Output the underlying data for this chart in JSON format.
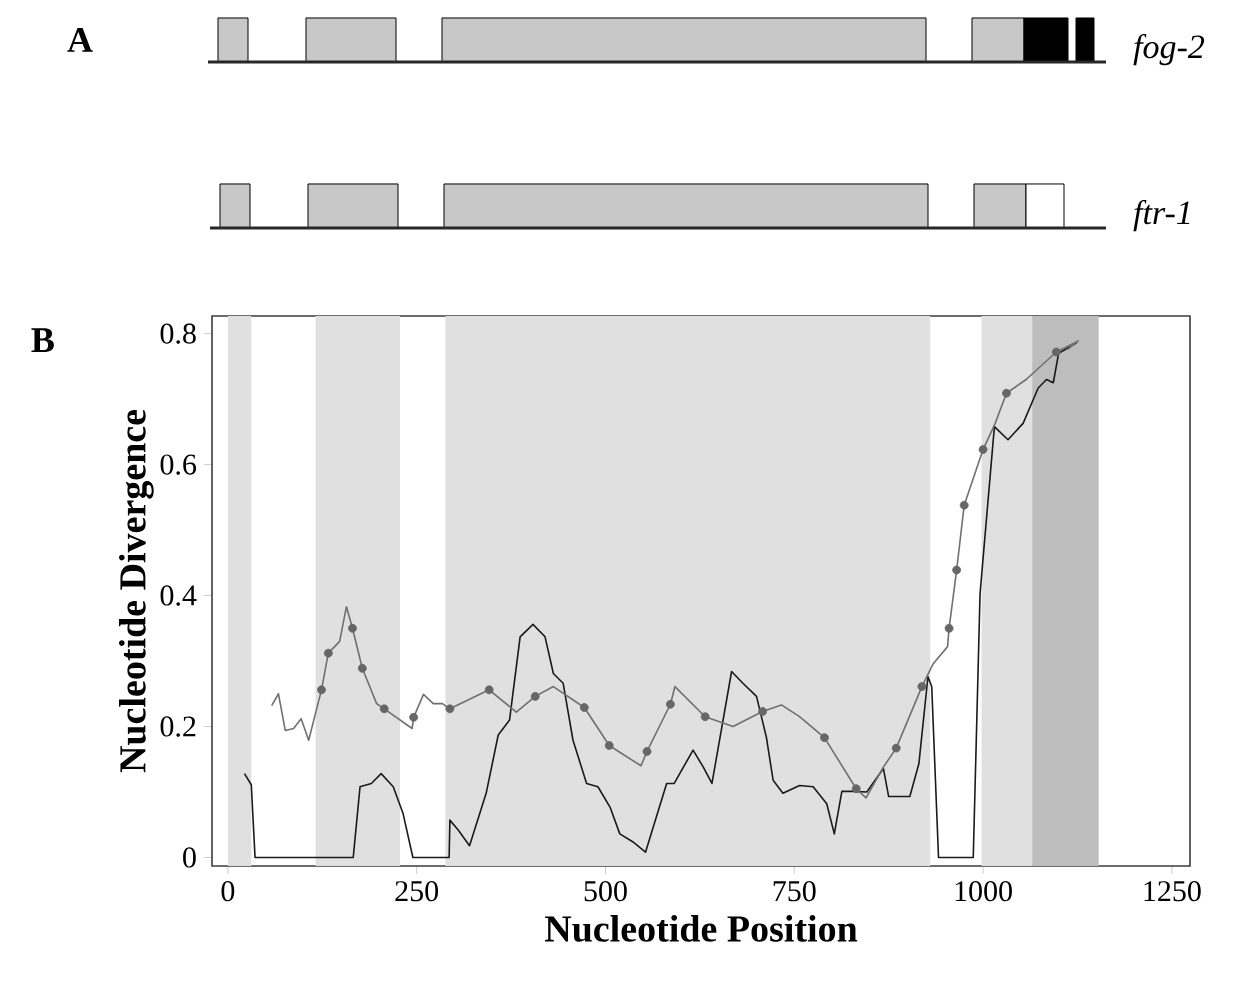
{
  "chart_data": [
    {
      "type": "other",
      "title": "A",
      "annotations": [
        "fog-2",
        "ftr-1"
      ]
    },
    {
      "type": "line",
      "title": "B",
      "xlabel": "Nucleotide Position",
      "ylabel": "Nucleotide Divergence",
      "xlim": [
        -21,
        1274
      ],
      "ylim": [
        -0.013,
        0.827
      ],
      "xticks": [
        0,
        250,
        500,
        750,
        1000,
        1250
      ],
      "yticks": [
        0,
        0.2,
        0.4,
        0.6,
        0.8
      ],
      "grid": false,
      "bands": [
        {
          "axis": "x",
          "from": 0,
          "to": 31,
          "color": "#e0e0e0"
        },
        {
          "axis": "x",
          "from": 116,
          "to": 228,
          "color": "#e0e0e0"
        },
        {
          "axis": "x",
          "from": 288,
          "to": 930,
          "color": "#e0e0e0"
        },
        {
          "axis": "x",
          "from": 998,
          "to": 1065,
          "color": "#e0e0e0"
        },
        {
          "axis": "x",
          "from": 1065,
          "to": 1153,
          "color": "#bdbdbd"
        }
      ],
      "series": [
        {
          "type": "line",
          "marker": "none",
          "color": "#1a1a1a",
          "x": [
            22,
            31,
            36,
            166,
            175,
            190,
            203,
            219,
            232,
            245,
            293,
            294,
            305,
            320,
            342,
            358,
            373,
            387,
            404,
            420,
            431,
            444,
            457,
            475,
            490,
            506,
            519,
            536,
            553,
            581,
            591,
            616,
            629,
            641,
            667,
            682,
            700,
            713,
            722,
            735,
            757,
            775,
            793,
            803,
            813,
            828,
            846,
            868,
            875,
            903,
            915,
            927,
            932,
            941,
            987,
            996,
            1015,
            1033,
            1053,
            1073,
            1084,
            1093,
            1100,
            1124
          ],
          "values": [
            0.128,
            0.111,
            0,
            0,
            0.108,
            0.113,
            0.128,
            0.108,
            0.067,
            0,
            0,
            0.057,
            0.042,
            0.018,
            0.098,
            0.187,
            0.21,
            0.337,
            0.356,
            0.337,
            0.281,
            0.266,
            0.179,
            0.113,
            0.108,
            0.077,
            0.036,
            0.024,
            0.008,
            0.113,
            0.113,
            0.164,
            0.139,
            0.113,
            0.284,
            0.266,
            0.246,
            0.184,
            0.118,
            0.098,
            0.11,
            0.108,
            0.082,
            0.036,
            0.101,
            0.101,
            0.1,
            0.136,
            0.093,
            0.093,
            0.143,
            0.276,
            0.261,
            0,
            0,
            0.403,
            0.658,
            0.638,
            0.663,
            0.717,
            0.73,
            0.725,
            0.77,
            0.786
          ]
        },
        {
          "type": "line",
          "marker": "none",
          "color": "#707070",
          "x": [
            58,
            67,
            76,
            87,
            97,
            107,
            124,
            133,
            148,
            157,
            165,
            178,
            197,
            207,
            244,
            246,
            259,
            272,
            284,
            294,
            346,
            382,
            407,
            431,
            472,
            505,
            547,
            555,
            586,
            592,
            632,
            669,
            708,
            733,
            757,
            790,
            832,
            845,
            868,
            885,
            919,
            934,
            953,
            955,
            965,
            975,
            1000,
            1016,
            1031,
            1057,
            1097,
            1126,
            1112
          ],
          "values": [
            0.232,
            0.25,
            0.194,
            0.197,
            0.212,
            0.179,
            0.256,
            0.312,
            0.33,
            0.383,
            0.35,
            0.289,
            0.235,
            0.227,
            0.197,
            0.214,
            0.249,
            0.235,
            0.235,
            0.227,
            0.256,
            0.222,
            0.246,
            0.261,
            0.229,
            0.171,
            0.14,
            0.162,
            0.234,
            0.261,
            0.215,
            0.2,
            0.223,
            0.233,
            0.215,
            0.183,
            0.105,
            0.091,
            0.138,
            0.167,
            0.261,
            0.296,
            0.322,
            0.35,
            0.439,
            0.538,
            0.623,
            0.663,
            0.709,
            0.73,
            0.772,
            0.789,
            0.776
          ]
        },
        {
          "type": "scatter",
          "marker": "circle",
          "color": "#666666",
          "x": [
            124,
            133,
            165,
            178,
            207,
            246,
            294,
            346,
            407,
            472,
            505,
            555,
            586,
            632,
            708,
            790,
            832,
            885,
            919,
            955,
            965,
            975,
            1000,
            1031,
            1097
          ],
          "values": [
            0.256,
            0.312,
            0.35,
            0.289,
            0.227,
            0.214,
            0.227,
            0.256,
            0.246,
            0.229,
            0.171,
            0.162,
            0.234,
            0.215,
            0.223,
            0.183,
            0.105,
            0.167,
            0.261,
            0.35,
            0.439,
            0.538,
            0.623,
            0.709,
            0.772
          ]
        }
      ]
    }
  ]
}
